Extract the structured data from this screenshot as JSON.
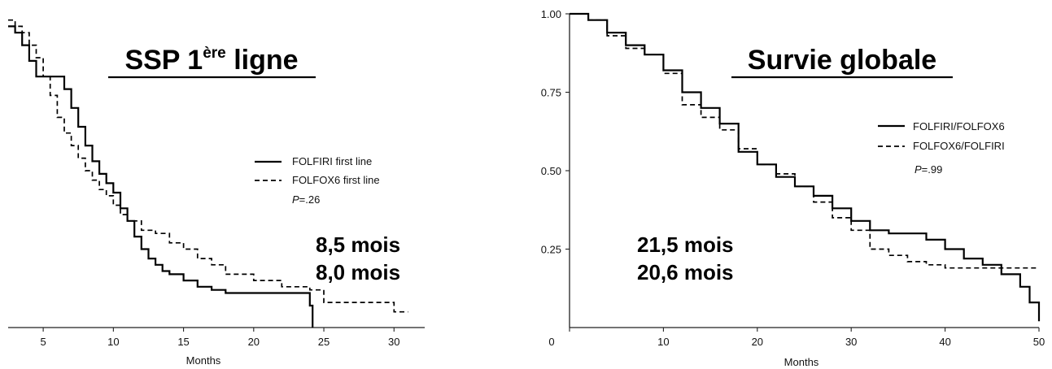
{
  "chart_data": [
    {
      "type": "line",
      "title": "SSP 1ère ligne",
      "title_parts": {
        "main": "SSP 1",
        "sup": "ère",
        "rest": " ligne"
      },
      "xlabel": "Months",
      "ylabel": "",
      "xlim": [
        2.5,
        33
      ],
      "ylim": [
        0,
        1
      ],
      "x_ticks": [
        5,
        10,
        15,
        20,
        25,
        30
      ],
      "x_tick_labels": [
        "5",
        "10",
        "15",
        "20",
        "25",
        "30"
      ],
      "legend": {
        "position": "right-middle",
        "entries": [
          {
            "label": "FOLFIRI first line",
            "style": "solid"
          },
          {
            "label": "FOLFOX6 first line",
            "style": "dashed"
          }
        ]
      },
      "pvalue": {
        "label": "P",
        "value": "=.26"
      },
      "annotations": [
        "8,5 mois",
        "8,0 mois"
      ],
      "series": [
        {
          "name": "FOLFIRI first line",
          "style": "solid",
          "x": [
            2.5,
            3.0,
            3.5,
            4.0,
            4.5,
            5.0,
            6.0,
            6.5,
            7.0,
            7.5,
            8.0,
            8.5,
            9.0,
            9.5,
            10.0,
            10.5,
            11.0,
            11.5,
            12.0,
            12.5,
            13.0,
            13.5,
            14.0,
            15.0,
            16.0,
            17.0,
            18.0,
            20.0,
            22.0,
            24.0,
            24.2
          ],
          "y": [
            0.96,
            0.94,
            0.9,
            0.85,
            0.8,
            0.8,
            0.8,
            0.76,
            0.7,
            0.64,
            0.58,
            0.53,
            0.49,
            0.46,
            0.43,
            0.38,
            0.34,
            0.29,
            0.25,
            0.22,
            0.2,
            0.18,
            0.17,
            0.15,
            0.13,
            0.12,
            0.11,
            0.11,
            0.11,
            0.07,
            0.0
          ]
        },
        {
          "name": "FOLFOX6 first line",
          "style": "dashed",
          "x": [
            2.5,
            3.0,
            3.5,
            4.0,
            4.5,
            5.0,
            5.5,
            6.0,
            6.5,
            7.0,
            7.5,
            8.0,
            8.5,
            9.0,
            9.5,
            10.0,
            10.5,
            11.0,
            12.0,
            13.0,
            14.0,
            15.0,
            16.0,
            17.0,
            18.0,
            20.0,
            22.0,
            24.0,
            25.0,
            28.0,
            30.0,
            31.0
          ],
          "y": [
            0.98,
            0.96,
            0.94,
            0.9,
            0.86,
            0.8,
            0.74,
            0.67,
            0.62,
            0.58,
            0.54,
            0.5,
            0.47,
            0.44,
            0.42,
            0.39,
            0.36,
            0.34,
            0.31,
            0.3,
            0.27,
            0.25,
            0.22,
            0.2,
            0.17,
            0.15,
            0.13,
            0.12,
            0.08,
            0.08,
            0.05,
            0.05
          ]
        }
      ]
    },
    {
      "type": "line",
      "title": "Survie globale",
      "xlabel": "Months",
      "ylabel": "",
      "xlim": [
        0,
        50
      ],
      "ylim": [
        0,
        1.0
      ],
      "x_ticks": [
        0,
        10,
        20,
        30,
        40,
        50
      ],
      "x_tick_labels": [
        "0",
        "10",
        "20",
        "30",
        "40",
        "50"
      ],
      "y_ticks": [
        0.25,
        0.5,
        0.75,
        1.0
      ],
      "y_tick_labels": [
        "0.25",
        "0.50",
        "0.75",
        "1.00"
      ],
      "legend": {
        "position": "right-upper",
        "entries": [
          {
            "label": "FOLFIRI/FOLFOX6",
            "style": "solid"
          },
          {
            "label": "FOLFOX6/FOLFIRI",
            "style": "dashed"
          }
        ]
      },
      "pvalue": {
        "label": "P",
        "value": "=.99"
      },
      "annotations": [
        "21,5 mois",
        "20,6 mois"
      ],
      "series": [
        {
          "name": "FOLFIRI/FOLFOX6",
          "style": "solid",
          "x": [
            0,
            1,
            2,
            4,
            6,
            8,
            10,
            12,
            14,
            16,
            18,
            20,
            22,
            24,
            26,
            28,
            30,
            32,
            34,
            36,
            38,
            40,
            42,
            44,
            46,
            48,
            49,
            50
          ],
          "y": [
            1.0,
            1.0,
            0.98,
            0.94,
            0.9,
            0.87,
            0.82,
            0.75,
            0.7,
            0.65,
            0.56,
            0.52,
            0.48,
            0.45,
            0.42,
            0.38,
            0.34,
            0.31,
            0.3,
            0.3,
            0.28,
            0.25,
            0.22,
            0.2,
            0.17,
            0.13,
            0.08,
            0.02
          ]
        },
        {
          "name": "FOLFOX6/FOLFIRI",
          "style": "dashed",
          "x": [
            0,
            1,
            2,
            4,
            6,
            8,
            10,
            12,
            14,
            16,
            18,
            20,
            22,
            24,
            26,
            28,
            30,
            32,
            34,
            36,
            38,
            40,
            42,
            44,
            46,
            48,
            50
          ],
          "y": [
            1.0,
            1.0,
            0.98,
            0.93,
            0.89,
            0.87,
            0.81,
            0.71,
            0.67,
            0.63,
            0.57,
            0.52,
            0.49,
            0.45,
            0.4,
            0.35,
            0.31,
            0.25,
            0.23,
            0.21,
            0.2,
            0.19,
            0.19,
            0.19,
            0.19,
            0.19,
            0.19
          ]
        }
      ]
    }
  ]
}
